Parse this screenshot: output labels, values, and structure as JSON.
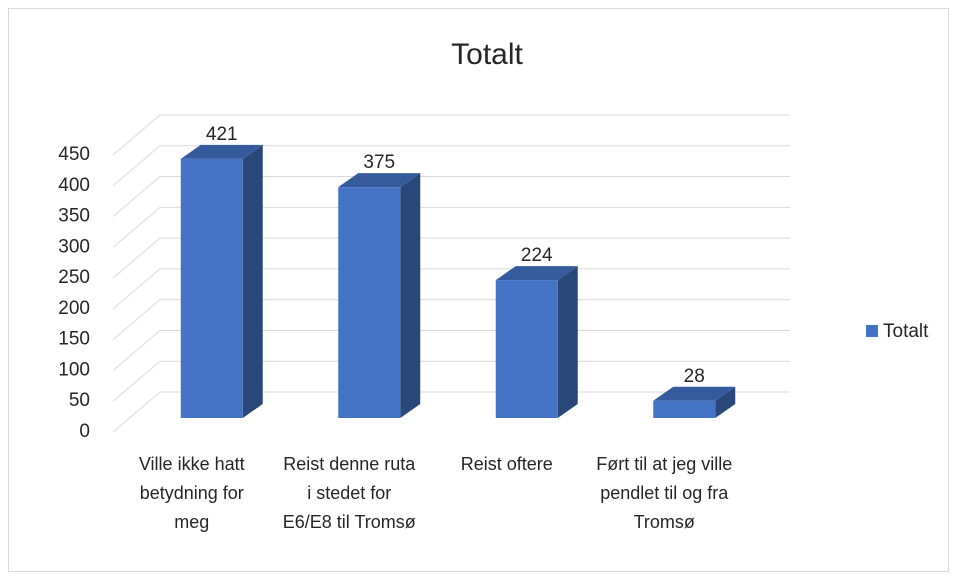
{
  "chart_data": {
    "type": "bar",
    "title": "Totalt",
    "categories": [
      "Ville ikke hatt betydning for meg",
      "Reist denne ruta i stedet for E6/E8 til Tromsø",
      "Reist oftere",
      "Ført til at jeg ville pendlet til og fra Tromsø"
    ],
    "series": [
      {
        "name": "Totalt",
        "color": "#4472c4",
        "values": [
          421,
          375,
          224,
          28
        ]
      }
    ],
    "ylim": [
      0,
      450
    ],
    "yticks": [
      0,
      50,
      100,
      150,
      200,
      250,
      300,
      350,
      400,
      450
    ],
    "grid": true,
    "legend": "right",
    "three_d": true
  }
}
